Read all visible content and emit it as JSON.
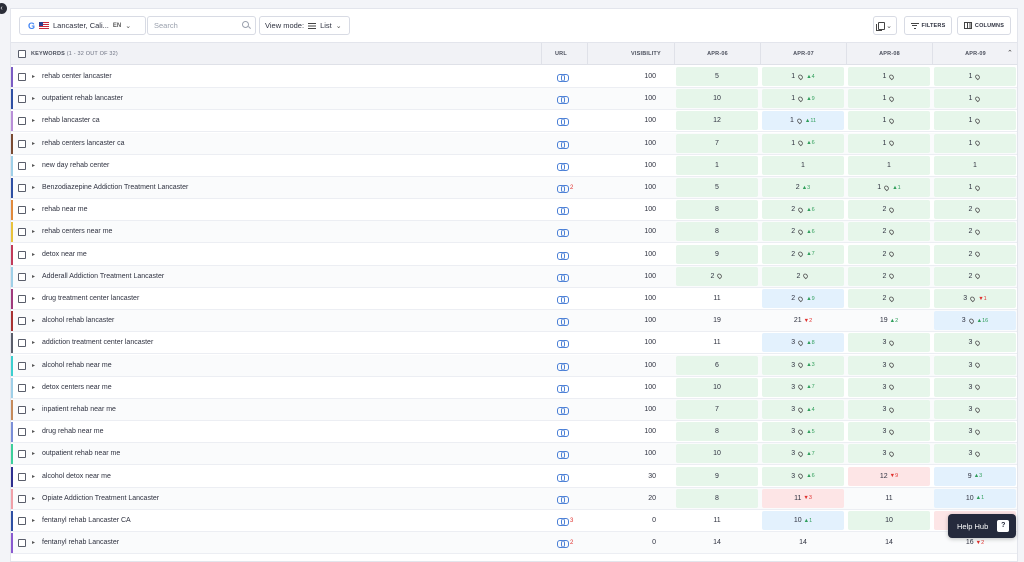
{
  "toolbar": {
    "google_glyph": "G",
    "location": "Lancaster, Cali...",
    "language": "EN",
    "search_placeholder": "Search",
    "view_mode_label": "View mode:",
    "view_mode_value": "List",
    "filters_label": "FILTERS",
    "columns_label": "COLUMNS"
  },
  "table": {
    "keywords_header": "KEYWORDS",
    "keywords_count": "(1 - 32 OUT OF 32)",
    "url_header": "URL",
    "visibility_header": "VISIBILITY",
    "dates": [
      "APR-06",
      "APR-07",
      "APR-08",
      "APR-09"
    ],
    "rows": [
      {
        "kw": "rehab center lancaster",
        "color": "#7b5cc4",
        "links": "",
        "vis": "100",
        "c": [
          {
            "v": "5",
            "t": "g"
          },
          {
            "v": "1",
            "p": 1,
            "ch": "4",
            "d": "up",
            "t": "g"
          },
          {
            "v": "1",
            "p": 1,
            "t": "g"
          },
          {
            "v": "1",
            "p": 1,
            "t": "g"
          }
        ]
      },
      {
        "kw": "outpatient rehab lancaster",
        "color": "#2e4fa3",
        "links": "",
        "vis": "100",
        "c": [
          {
            "v": "10",
            "t": "g"
          },
          {
            "v": "1",
            "p": 1,
            "ch": "9",
            "d": "up",
            "t": "g"
          },
          {
            "v": "1",
            "p": 1,
            "t": "g"
          },
          {
            "v": "1",
            "p": 1,
            "t": "g"
          }
        ]
      },
      {
        "kw": "rehab lancaster ca",
        "color": "#b98fd8",
        "links": "",
        "vis": "100",
        "c": [
          {
            "v": "12",
            "t": "g"
          },
          {
            "v": "1",
            "p": 1,
            "ch": "11",
            "d": "up",
            "t": "b"
          },
          {
            "v": "1",
            "p": 1,
            "t": "g"
          },
          {
            "v": "1",
            "p": 1,
            "t": "g"
          }
        ]
      },
      {
        "kw": "rehab centers lancaster ca",
        "color": "#7a4b32",
        "links": "",
        "vis": "100",
        "c": [
          {
            "v": "7",
            "t": "g"
          },
          {
            "v": "1",
            "p": 1,
            "ch": "6",
            "d": "up",
            "t": "g"
          },
          {
            "v": "1",
            "p": 1,
            "t": "g"
          },
          {
            "v": "1",
            "p": 1,
            "t": "g"
          }
        ]
      },
      {
        "kw": "new day rehab center",
        "color": "#9fd0e8",
        "links": "",
        "vis": "100",
        "c": [
          {
            "v": "1",
            "t": "g"
          },
          {
            "v": "1",
            "t": "g"
          },
          {
            "v": "1",
            "t": "g"
          },
          {
            "v": "1",
            "t": "g"
          }
        ]
      },
      {
        "kw": "Benzodiazepine Addiction Treatment Lancaster",
        "color": "#2e4fa3",
        "links": "2",
        "vis": "100",
        "c": [
          {
            "v": "5",
            "t": "g"
          },
          {
            "v": "2",
            "ch": "3",
            "d": "up",
            "t": "g"
          },
          {
            "v": "1",
            "p": 1,
            "ch": "1",
            "d": "up",
            "t": "g"
          },
          {
            "v": "1",
            "p": 1,
            "t": "g"
          }
        ]
      },
      {
        "kw": "rehab near me",
        "color": "#e08a3c",
        "links": "",
        "vis": "100",
        "c": [
          {
            "v": "8",
            "t": "g"
          },
          {
            "v": "2",
            "p": 1,
            "ch": "6",
            "d": "up",
            "t": "g"
          },
          {
            "v": "2",
            "p": 1,
            "t": "g"
          },
          {
            "v": "2",
            "p": 1,
            "t": "g"
          }
        ]
      },
      {
        "kw": "rehab centers near me",
        "color": "#e8c23c",
        "links": "",
        "vis": "100",
        "c": [
          {
            "v": "8",
            "t": "g"
          },
          {
            "v": "2",
            "p": 1,
            "ch": "6",
            "d": "up",
            "t": "g"
          },
          {
            "v": "2",
            "p": 1,
            "t": "g"
          },
          {
            "v": "2",
            "p": 1,
            "t": "g"
          }
        ]
      },
      {
        "kw": "detox near me",
        "color": "#c23b5a",
        "links": "",
        "vis": "100",
        "c": [
          {
            "v": "9",
            "t": "g"
          },
          {
            "v": "2",
            "p": 1,
            "ch": "7",
            "d": "up",
            "t": "g"
          },
          {
            "v": "2",
            "p": 1,
            "t": "g"
          },
          {
            "v": "2",
            "p": 1,
            "t": "g"
          }
        ]
      },
      {
        "kw": "Adderall Addiction Treatment Lancaster",
        "color": "#9fd0e8",
        "links": "",
        "vis": "100",
        "c": [
          {
            "v": "2",
            "p": 1,
            "t": "g"
          },
          {
            "v": "2",
            "p": 1,
            "t": "g"
          },
          {
            "v": "2",
            "p": 1,
            "t": "g"
          },
          {
            "v": "2",
            "p": 1,
            "t": "g"
          }
        ]
      },
      {
        "kw": "drug treatment center lancaster",
        "color": "#a03a7c",
        "links": "",
        "vis": "100",
        "c": [
          {
            "v": "11",
            "t": ""
          },
          {
            "v": "2",
            "p": 1,
            "ch": "9",
            "d": "up",
            "t": "b"
          },
          {
            "v": "2",
            "p": 1,
            "t": "g"
          },
          {
            "v": "3",
            "p": 1,
            "ch": "1",
            "d": "dn",
            "t": "g"
          }
        ]
      },
      {
        "kw": "alcohol rehab lancaster",
        "color": "#a83232",
        "links": "",
        "vis": "100",
        "c": [
          {
            "v": "19",
            "t": ""
          },
          {
            "v": "21",
            "ch": "2",
            "d": "dn",
            "t": ""
          },
          {
            "v": "19",
            "ch": "2",
            "d": "up",
            "t": ""
          },
          {
            "v": "3",
            "p": 1,
            "ch": "16",
            "d": "up",
            "t": "b"
          }
        ]
      },
      {
        "kw": "addiction treatment center lancaster",
        "color": "#5a5e6b",
        "links": "",
        "vis": "100",
        "c": [
          {
            "v": "11",
            "t": ""
          },
          {
            "v": "3",
            "p": 1,
            "ch": "8",
            "d": "up",
            "t": "b"
          },
          {
            "v": "3",
            "p": 1,
            "t": "g"
          },
          {
            "v": "3",
            "p": 1,
            "t": "g"
          }
        ]
      },
      {
        "kw": "alcohol rehab near me",
        "color": "#3ccfcf",
        "links": "",
        "vis": "100",
        "c": [
          {
            "v": "6",
            "t": "g"
          },
          {
            "v": "3",
            "p": 1,
            "ch": "3",
            "d": "up",
            "t": "g"
          },
          {
            "v": "3",
            "p": 1,
            "t": "g"
          },
          {
            "v": "3",
            "p": 1,
            "t": "g"
          }
        ]
      },
      {
        "kw": "detox centers near me",
        "color": "#9fd0e8",
        "links": "",
        "vis": "100",
        "c": [
          {
            "v": "10",
            "t": "g"
          },
          {
            "v": "3",
            "p": 1,
            "ch": "7",
            "d": "up",
            "t": "g"
          },
          {
            "v": "3",
            "p": 1,
            "t": "g"
          },
          {
            "v": "3",
            "p": 1,
            "t": "g"
          }
        ]
      },
      {
        "kw": "inpatient rehab near me",
        "color": "#c58a5a",
        "links": "",
        "vis": "100",
        "c": [
          {
            "v": "7",
            "t": "g"
          },
          {
            "v": "3",
            "p": 1,
            "ch": "4",
            "d": "up",
            "t": "g"
          },
          {
            "v": "3",
            "p": 1,
            "t": "g"
          },
          {
            "v": "3",
            "p": 1,
            "t": "g"
          }
        ]
      },
      {
        "kw": "drug rehab near me",
        "color": "#7b8fd8",
        "links": "",
        "vis": "100",
        "c": [
          {
            "v": "8",
            "t": "g"
          },
          {
            "v": "3",
            "p": 1,
            "ch": "5",
            "d": "up",
            "t": "g"
          },
          {
            "v": "3",
            "p": 1,
            "t": "g"
          },
          {
            "v": "3",
            "p": 1,
            "t": "g"
          }
        ]
      },
      {
        "kw": "outpatient rehab near me",
        "color": "#3ccf9a",
        "links": "",
        "vis": "100",
        "c": [
          {
            "v": "10",
            "t": "g"
          },
          {
            "v": "3",
            "p": 1,
            "ch": "7",
            "d": "up",
            "t": "g"
          },
          {
            "v": "3",
            "p": 1,
            "t": "g"
          },
          {
            "v": "3",
            "p": 1,
            "t": "g"
          }
        ]
      },
      {
        "kw": "alcohol detox near me",
        "color": "#2e2f8f",
        "links": "",
        "vis": "30",
        "c": [
          {
            "v": "9",
            "t": "g"
          },
          {
            "v": "3",
            "p": 1,
            "ch": "6",
            "d": "up",
            "t": "g"
          },
          {
            "v": "12",
            "ch": "9",
            "d": "dn",
            "t": "r"
          },
          {
            "v": "9",
            "ch": "3",
            "d": "up",
            "t": "b"
          }
        ]
      },
      {
        "kw": "Opiate Addiction Treatment Lancaster",
        "color": "#f0a0a8",
        "links": "",
        "vis": "20",
        "c": [
          {
            "v": "8",
            "t": "g"
          },
          {
            "v": "11",
            "ch": "3",
            "d": "dn",
            "t": "r"
          },
          {
            "v": "11",
            "t": ""
          },
          {
            "v": "10",
            "ch": "1",
            "d": "up",
            "t": "b"
          }
        ]
      },
      {
        "kw": "fentanyl rehab Lancaster CA",
        "color": "#2e4fa3",
        "links": "3",
        "vis": "0",
        "c": [
          {
            "v": "11",
            "t": ""
          },
          {
            "v": "10",
            "ch": "1",
            "d": "up",
            "t": "b"
          },
          {
            "v": "10",
            "t": "g"
          },
          {
            "v": "",
            "t": "r"
          }
        ]
      },
      {
        "kw": "fentanyl rehab Lancaster",
        "color": "#8a5ad0",
        "links": "2",
        "vis": "0",
        "c": [
          {
            "v": "14",
            "t": ""
          },
          {
            "v": "14",
            "t": ""
          },
          {
            "v": "14",
            "t": ""
          },
          {
            "v": "16",
            "ch": "2",
            "d": "dn",
            "t": ""
          }
        ]
      }
    ]
  },
  "help_hub": {
    "label": "Help Hub"
  }
}
